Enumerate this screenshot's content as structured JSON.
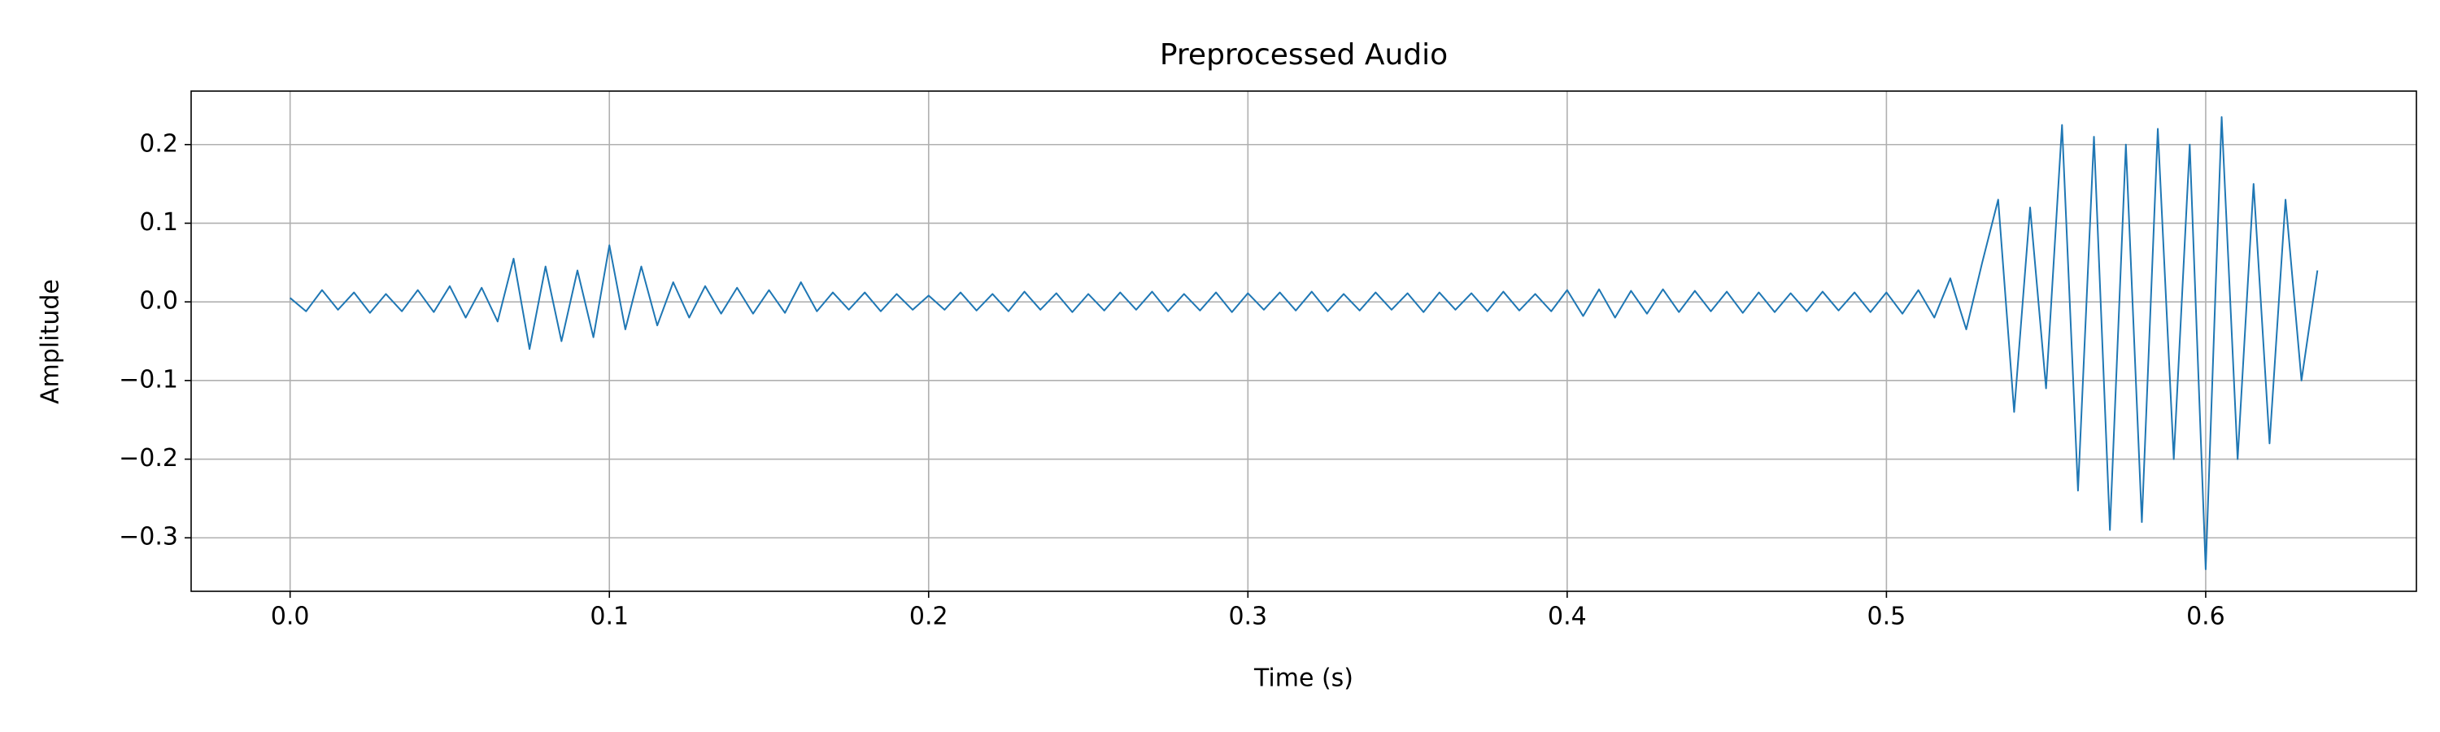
{
  "chart_data": {
    "type": "line",
    "title": "Preprocessed Audio",
    "x_label": "Time (s)",
    "y_label": "Amplitude",
    "x": [
      0,
      0.005,
      0.01,
      0.015,
      0.02,
      0.025,
      0.03,
      0.035,
      0.04,
      0.045,
      0.05,
      0.055,
      0.06,
      0.065,
      0.07,
      0.075,
      0.08,
      0.085,
      0.09,
      0.095,
      0.1,
      0.105,
      0.11,
      0.115,
      0.12,
      0.125,
      0.13,
      0.135,
      0.14,
      0.145,
      0.15,
      0.155,
      0.16,
      0.165,
      0.17,
      0.175,
      0.18,
      0.185,
      0.19,
      0.195,
      0.2,
      0.205,
      0.21,
      0.215,
      0.22,
      0.225,
      0.23,
      0.235,
      0.24,
      0.245,
      0.25,
      0.255,
      0.26,
      0.265,
      0.27,
      0.275,
      0.28,
      0.285,
      0.29,
      0.295,
      0.3,
      0.305,
      0.31,
      0.315,
      0.32,
      0.325,
      0.33,
      0.335,
      0.34,
      0.345,
      0.35,
      0.355,
      0.36,
      0.365,
      0.37,
      0.375,
      0.38,
      0.385,
      0.39,
      0.395,
      0.4,
      0.405,
      0.41,
      0.415,
      0.42,
      0.425,
      0.43,
      0.435,
      0.44,
      0.445,
      0.45,
      0.455,
      0.46,
      0.465,
      0.47,
      0.475,
      0.48,
      0.485,
      0.49,
      0.495,
      0.5,
      0.505,
      0.51,
      0.515,
      0.52,
      0.525,
      0.53,
      0.535,
      0.54,
      0.545,
      0.55,
      0.555,
      0.56,
      0.565,
      0.57,
      0.575,
      0.58,
      0.585,
      0.59,
      0.595,
      0.6,
      0.605,
      0.61,
      0.615,
      0.62,
      0.625,
      0.63,
      0.635
    ],
    "series": [
      {
        "color": "#1f77b4",
        "values": [
          0.005,
          -0.012,
          0.015,
          -0.01,
          0.012,
          -0.014,
          0.01,
          -0.012,
          0.015,
          -0.013,
          0.02,
          -0.02,
          0.018,
          -0.025,
          0.055,
          -0.06,
          0.045,
          -0.05,
          0.04,
          -0.045,
          0.072,
          -0.035,
          0.045,
          -0.03,
          0.025,
          -0.02,
          0.02,
          -0.015,
          0.018,
          -0.015,
          0.015,
          -0.014,
          0.025,
          -0.012,
          0.012,
          -0.01,
          0.012,
          -0.012,
          0.01,
          -0.01,
          0.008,
          -0.01,
          0.012,
          -0.011,
          0.01,
          -0.012,
          0.013,
          -0.01,
          0.011,
          -0.013,
          0.01,
          -0.011,
          0.012,
          -0.01,
          0.013,
          -0.012,
          0.01,
          -0.011,
          0.012,
          -0.013,
          0.011,
          -0.01,
          0.012,
          -0.011,
          0.013,
          -0.012,
          0.01,
          -0.011,
          0.012,
          -0.01,
          0.011,
          -0.013,
          0.012,
          -0.01,
          0.011,
          -0.012,
          0.013,
          -0.011,
          0.01,
          -0.012,
          0.015,
          -0.018,
          0.016,
          -0.02,
          0.014,
          -0.015,
          0.016,
          -0.013,
          0.014,
          -0.012,
          0.013,
          -0.014,
          0.012,
          -0.013,
          0.011,
          -0.012,
          0.013,
          -0.011,
          0.012,
          -0.013,
          0.012,
          -0.015,
          0.015,
          -0.02,
          0.03,
          -0.035,
          0.05,
          0.13,
          -0.14,
          0.12,
          -0.11,
          0.225,
          -0.24,
          0.21,
          -0.29,
          0.2,
          -0.28,
          0.22,
          -0.2,
          0.2,
          -0.34,
          0.235,
          -0.2,
          0.15,
          -0.18,
          0.13,
          -0.1,
          0.04
        ]
      }
    ],
    "xlim": [
      -0.031,
      0.666
    ],
    "ylim": [
      -0.368,
      0.268
    ],
    "xticks": [
      {
        "value": 0,
        "label": "0.0"
      },
      0.1,
      0.2,
      0.3,
      0.4,
      0.5,
      0.6
    ],
    "yticks": [
      {
        "value": -0.3,
        "label": "−0.3"
      },
      {
        "value": -0.2,
        "label": "−0.2"
      },
      {
        "value": -0.1,
        "label": "−0.1"
      },
      {
        "value": 0,
        "label": "0.0"
      },
      0.1,
      0.2
    ],
    "grid": true
  }
}
